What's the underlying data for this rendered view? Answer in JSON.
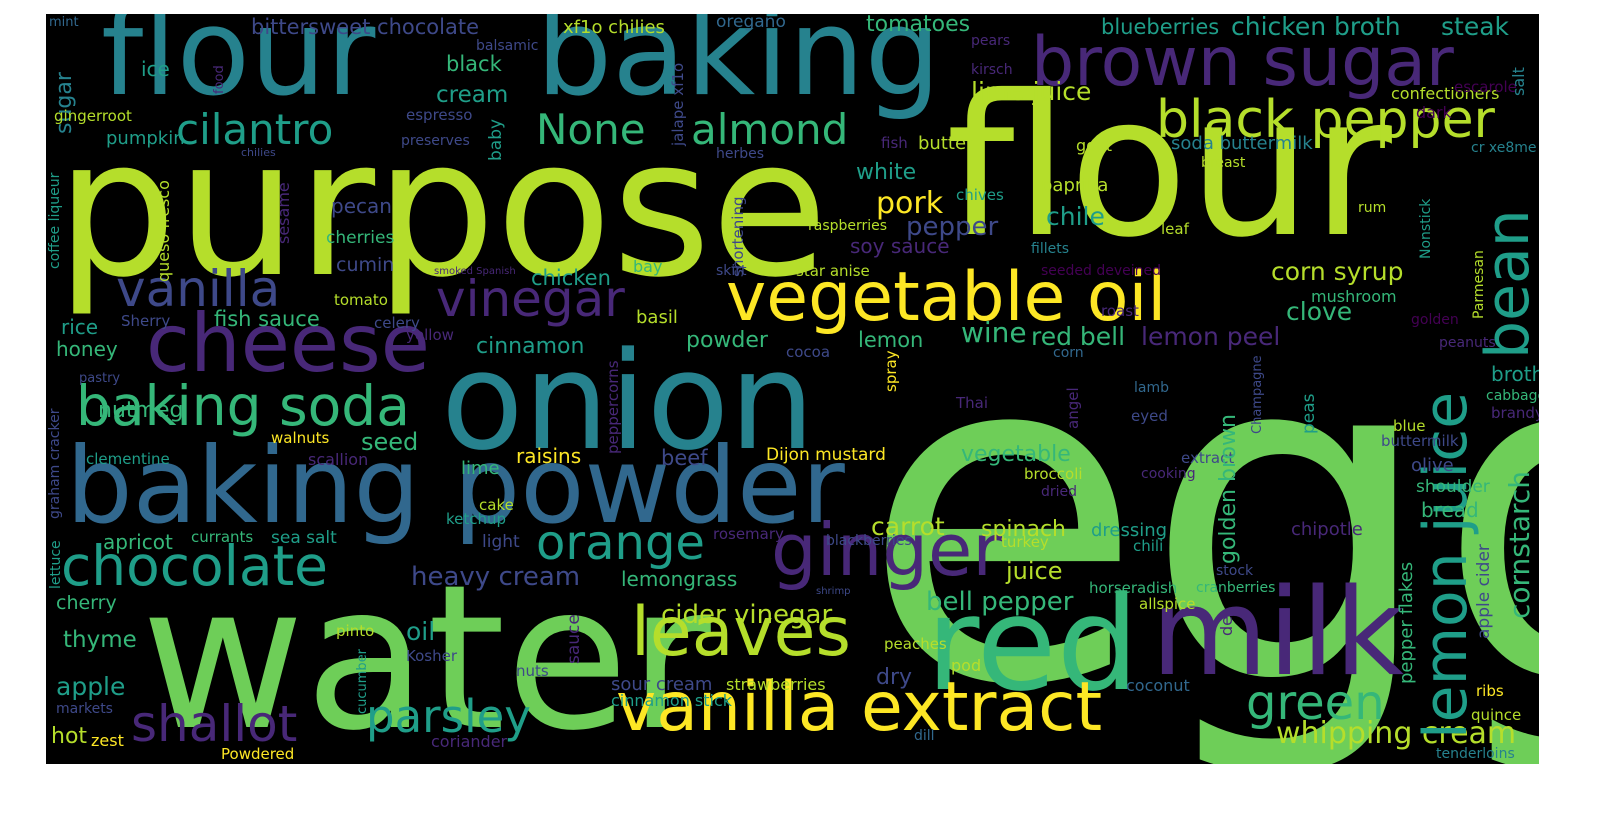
{
  "palette": {
    "background": "#000000",
    "yellow": "#fde725",
    "lime": "#b5de2b",
    "green": "#6ece58",
    "emerald": "#35b779",
    "teal": "#1f9e89",
    "cyan": "#26828e",
    "blue": "#31688e",
    "indigo": "#3e4989",
    "purple": "#482878",
    "dark_purple": "#440154"
  },
  "words": [
    {
      "text": "egg"
    },
    {
      "text": "purpose"
    },
    {
      "text": "flour"
    },
    {
      "text": "water"
    },
    {
      "text": "flour"
    },
    {
      "text": "baking"
    },
    {
      "text": "onion"
    },
    {
      "text": "baking powder"
    },
    {
      "text": "red"
    },
    {
      "text": "milk"
    },
    {
      "text": "vegetable oil"
    },
    {
      "text": "brown sugar"
    },
    {
      "text": "cheese"
    },
    {
      "text": "vanilla extract"
    },
    {
      "text": "leaves"
    },
    {
      "text": "ginger"
    },
    {
      "text": "baking soda"
    },
    {
      "text": "chocolate"
    },
    {
      "text": "black pepper"
    },
    {
      "text": "vanilla"
    },
    {
      "text": "vinegar"
    },
    {
      "text": "shallot"
    },
    {
      "text": "parsley"
    },
    {
      "text": "cilantro"
    },
    {
      "text": "None"
    },
    {
      "text": "almond"
    },
    {
      "text": "orange"
    },
    {
      "text": "green"
    },
    {
      "text": "whipping cream"
    },
    {
      "text": "lemon juice"
    },
    {
      "text": "bean"
    },
    {
      "text": "cornstarch"
    },
    {
      "text": "heavy cream"
    },
    {
      "text": "cider vinegar"
    },
    {
      "text": "bell pepper"
    },
    {
      "text": "pork"
    },
    {
      "text": "pepper"
    },
    {
      "text": "wine"
    },
    {
      "text": "red bell"
    },
    {
      "text": "lemon peel"
    },
    {
      "text": "corn syrup"
    },
    {
      "text": "clove"
    },
    {
      "text": "chile"
    },
    {
      "text": "carrot"
    },
    {
      "text": "spinach"
    },
    {
      "text": "juice"
    },
    {
      "text": "vegetable"
    },
    {
      "text": "lime juice"
    },
    {
      "text": "chicken broth"
    },
    {
      "text": "steak"
    },
    {
      "text": "blueberries"
    },
    {
      "text": "tomatoes"
    },
    {
      "text": "bittersweet chocolate"
    },
    {
      "text": "xf1o chilies"
    },
    {
      "text": "oregano"
    },
    {
      "text": "mint"
    },
    {
      "text": "balsamic"
    },
    {
      "text": "ice"
    },
    {
      "text": "black"
    },
    {
      "text": "cream"
    },
    {
      "text": "sugar"
    },
    {
      "text": "gingerroot"
    },
    {
      "text": "espresso"
    },
    {
      "text": "pumpkin"
    },
    {
      "text": "preserves"
    },
    {
      "text": "chilies"
    },
    {
      "text": "herbes"
    },
    {
      "text": "butter"
    },
    {
      "text": "goat"
    },
    {
      "text": "soda buttermilk"
    },
    {
      "text": "breast"
    },
    {
      "text": "cr xe8me"
    },
    {
      "text": "confectioners"
    },
    {
      "text": "dark"
    },
    {
      "text": "escarole"
    },
    {
      "text": "pears"
    },
    {
      "text": "kirsch"
    },
    {
      "text": "salt"
    },
    {
      "text": "white"
    },
    {
      "text": "paprika"
    },
    {
      "text": "chives"
    },
    {
      "text": "pecan"
    },
    {
      "text": "sesame"
    },
    {
      "text": "cherries"
    },
    {
      "text": "cumin"
    },
    {
      "text": "soy sauce"
    },
    {
      "text": "raspberries"
    },
    {
      "text": "fillets"
    },
    {
      "text": "leaf"
    },
    {
      "text": "rum"
    },
    {
      "text": "Nonstick"
    },
    {
      "text": "Parmesan"
    },
    {
      "text": "tomato"
    },
    {
      "text": "fish sauce"
    },
    {
      "text": "celery"
    },
    {
      "text": "chicken"
    },
    {
      "text": "smoked Spanish"
    },
    {
      "text": "skirt"
    },
    {
      "text": "star anise"
    },
    {
      "text": "seeded deveined"
    },
    {
      "text": "roast"
    },
    {
      "text": "mushroom"
    },
    {
      "text": "golden"
    },
    {
      "text": "rice"
    },
    {
      "text": "Sherry"
    },
    {
      "text": "honey"
    },
    {
      "text": "yellow"
    },
    {
      "text": "cinnamon"
    },
    {
      "text": "basil"
    },
    {
      "text": "powder"
    },
    {
      "text": "lemon"
    },
    {
      "text": "cocoa"
    },
    {
      "text": "corn"
    },
    {
      "text": "peanuts"
    },
    {
      "text": "broth"
    },
    {
      "text": "cabbage"
    },
    {
      "text": "brandy"
    },
    {
      "text": "pastry"
    },
    {
      "text": "nutmeg"
    },
    {
      "text": "seed"
    },
    {
      "text": "walnuts"
    },
    {
      "text": "clementine"
    },
    {
      "text": "scallion"
    },
    {
      "text": "raisins"
    },
    {
      "text": "beef"
    },
    {
      "text": "Dijon mustard"
    },
    {
      "text": "lime"
    },
    {
      "text": "broccoli"
    },
    {
      "text": "dried"
    },
    {
      "text": "extract"
    },
    {
      "text": "cooking"
    },
    {
      "text": "lamb"
    },
    {
      "text": "eyed"
    },
    {
      "text": "Thai"
    },
    {
      "text": "peas"
    },
    {
      "text": "blue"
    },
    {
      "text": "buttermilk"
    },
    {
      "text": "olive"
    },
    {
      "text": "shoulder"
    },
    {
      "text": "bread"
    },
    {
      "text": "apple cider"
    },
    {
      "text": "pepper flakes"
    },
    {
      "text": "golden brown"
    },
    {
      "text": "Champagne"
    },
    {
      "text": "chipotle"
    },
    {
      "text": "dressing"
    },
    {
      "text": "chili"
    },
    {
      "text": "turkey"
    },
    {
      "text": "cake"
    },
    {
      "text": "ketchup"
    },
    {
      "text": "apricot"
    },
    {
      "text": "currants"
    },
    {
      "text": "sea salt"
    },
    {
      "text": "light"
    },
    {
      "text": "rosemary"
    },
    {
      "text": "blackberries"
    },
    {
      "text": "lemongrass"
    },
    {
      "text": "stock"
    },
    {
      "text": "cranberries"
    },
    {
      "text": "horseradish"
    },
    {
      "text": "allspice"
    },
    {
      "text": "cherry"
    },
    {
      "text": "shrimp"
    },
    {
      "text": "thyme"
    },
    {
      "text": "oil"
    },
    {
      "text": "pinto"
    },
    {
      "text": "peaches"
    },
    {
      "text": "Kosher"
    },
    {
      "text": "nuts"
    },
    {
      "text": "sauce"
    },
    {
      "text": "cucumber"
    },
    {
      "text": "pod"
    },
    {
      "text": "de"
    },
    {
      "text": "apple"
    },
    {
      "text": "sour cream"
    },
    {
      "text": "strawberries"
    },
    {
      "text": "dry"
    },
    {
      "text": "cinnamon stick"
    },
    {
      "text": "coconut"
    },
    {
      "text": "ribs"
    },
    {
      "text": "markets"
    },
    {
      "text": "quince"
    },
    {
      "text": "hot"
    },
    {
      "text": "zest"
    },
    {
      "text": "coriander"
    },
    {
      "text": "Powdered"
    },
    {
      "text": "dill"
    },
    {
      "text": "tenderloins"
    },
    {
      "text": "coffee liqueur"
    },
    {
      "text": "queso fresco"
    },
    {
      "text": "graham cracker"
    },
    {
      "text": "lettuce"
    },
    {
      "text": "food"
    },
    {
      "text": "baby"
    },
    {
      "text": "jalape xf1o"
    },
    {
      "text": "shortening"
    },
    {
      "text": "bay"
    },
    {
      "text": "spray"
    },
    {
      "text": "peppercorns"
    },
    {
      "text": "angel"
    },
    {
      "text": "fish"
    },
    {
      "text": "fish"
    }
  ]
}
